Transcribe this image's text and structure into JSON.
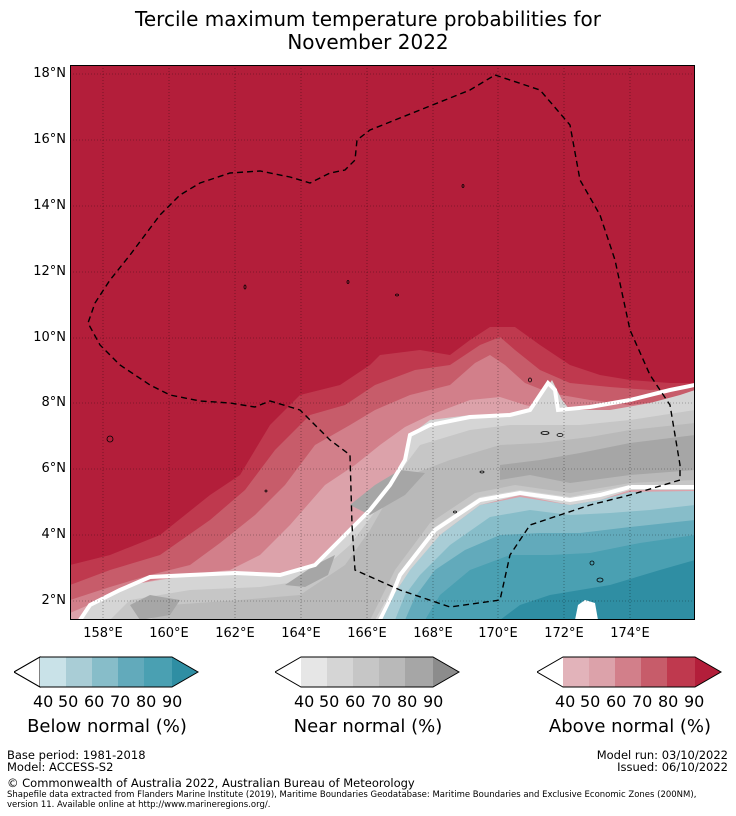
{
  "title": {
    "line1": "Tercile maximum temperature probabilities for",
    "line2": "November 2022"
  },
  "map": {
    "lat_labels": [
      "18°N",
      "16°N",
      "14°N",
      "12°N",
      "10°N",
      "8°N",
      "6°N",
      "4°N",
      "2°N"
    ],
    "lon_labels": [
      "158°E",
      "160°E",
      "162°E",
      "164°E",
      "166°E",
      "168°E",
      "170°E",
      "172°E",
      "174°E"
    ],
    "colors": {
      "above_90": "#b31e3a",
      "above_80": "#bf394e",
      "above_70": "#c75c6a",
      "above_60": "#d27f8a",
      "above_50": "#dca2aa",
      "near_90": "#8c8c8c",
      "near_80": "#a6a6a6",
      "near_70": "#b9b9b9",
      "near_60": "#c6c6c6",
      "near_50": "#d5d5d5",
      "below_50": "#a9cdd6",
      "below_60": "#87bdc9",
      "below_70": "#62aabb",
      "below_80": "#4aa0b2",
      "below_90": "#2f8ea3"
    }
  },
  "legend": {
    "below": {
      "title": "Below normal (%)",
      "ticks": [
        "40",
        "50",
        "60",
        "70",
        "80",
        "90"
      ],
      "colors": [
        "#ffffff",
        "#c9e2e8",
        "#a9cdd6",
        "#87bdc9",
        "#62aabb",
        "#4aa0b2",
        "#2f8ea3"
      ]
    },
    "near": {
      "title": "Near normal (%)",
      "ticks": [
        "40",
        "50",
        "60",
        "70",
        "80",
        "90"
      ],
      "colors": [
        "#ffffff",
        "#e6e6e6",
        "#d5d5d5",
        "#c6c6c6",
        "#b9b9b9",
        "#a6a6a6",
        "#8c8c8c"
      ]
    },
    "above": {
      "title": "Above normal (%)",
      "ticks": [
        "40",
        "50",
        "60",
        "70",
        "80",
        "90"
      ],
      "colors": [
        "#ffffff",
        "#e2b3ba",
        "#dca2aa",
        "#d27f8a",
        "#c75c6a",
        "#bf394e",
        "#b31e3a"
      ]
    }
  },
  "footer": {
    "base_period": "Base period: 1981-2018",
    "model": "Model: ACCESS-S2",
    "model_run": "Model run: 03/10/2022",
    "issued": "Issued: 06/10/2022",
    "copyright": "© Commonwealth of Australia 2022, Australian Bureau of Meteorology",
    "shapefile": "Shapefile data extracted from Flanders Marine Institute (2019), Maritime Boundaries Geodatabase: Maritime Boundaries and Exclusive Economic Zones (200NM), version 11. Available online at http://www.marineregions.org/."
  }
}
